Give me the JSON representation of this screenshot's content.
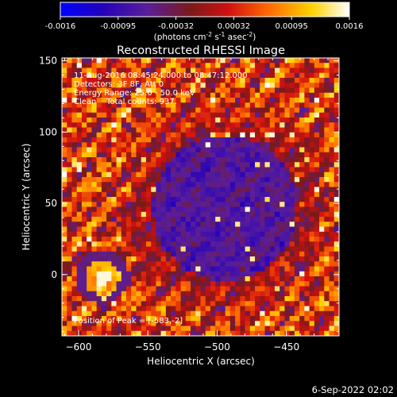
{
  "colorbar": {
    "ticks": [
      "-0.0016",
      "-0.00095",
      "-0.00032",
      "0.00032",
      "0.00095",
      "0.0016"
    ],
    "unit_parts": [
      "(photons cm",
      "-2",
      " s",
      "-1",
      " asec",
      "-2",
      ")"
    ],
    "colors": [
      "#0000ff",
      "#2200bb",
      "#5a1e9a",
      "#7a1a1a",
      "#d01010",
      "#ff6a00",
      "#ffd200",
      "#ffffff"
    ]
  },
  "chart_data": {
    "type": "heatmap",
    "title": "Reconstructed RHESSI Image",
    "xlabel": "Heliocentric X (arcsec)",
    "ylabel": "Heliocentric Y (arcsec)",
    "xlim": [
      -612,
      -412
    ],
    "ylim": [
      -43,
      152
    ],
    "xticks": [
      -600,
      -550,
      -500,
      -450
    ],
    "yticks": [
      0,
      50,
      100,
      150
    ],
    "annotations": [
      "11-Aug-2016 08:45:24.000 to 08:47:12.000",
      "Detectors: 3F 8F, Att 0",
      "Energy Range: 25.0 - 50.0 keV",
      "Clean    Total counts: 937."
    ],
    "peak_label": "Position of Peak = [-583,-2]",
    "peak": [
      -583,
      -2
    ],
    "grid": false
  },
  "footer": {
    "timestamp": "6-Sep-2022 02:02"
  }
}
